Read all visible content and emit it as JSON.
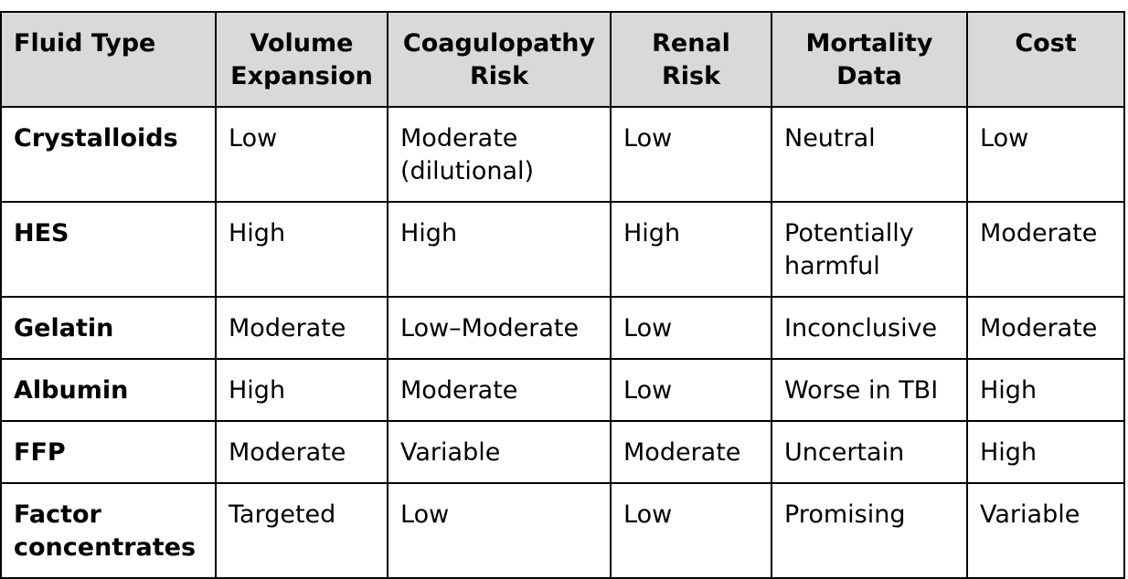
{
  "table": {
    "headers": [
      "Fluid Type",
      "Volume Expansion",
      "Coagulopathy Risk",
      "Renal Risk",
      "Mortality Data",
      "Cost"
    ],
    "rows": [
      [
        "Crystalloids",
        "Low",
        "Moderate (dilutional)",
        "Low",
        "Neutral",
        "Low"
      ],
      [
        "HES",
        "High",
        "High",
        "High",
        "Potentially harmful",
        "Moderate"
      ],
      [
        "Gelatin",
        "Moderate",
        "Low–Moderate",
        "Low",
        "Inconclusive",
        "Moderate"
      ],
      [
        "Albumin",
        "High",
        "Moderate",
        "Low",
        "Worse in TBI",
        "High"
      ],
      [
        "FFP",
        "Moderate",
        "Variable",
        "Moderate",
        "Uncertain",
        "High"
      ],
      [
        "Factor concentrates",
        "Targeted",
        "Low",
        "Low",
        "Promising",
        "Variable"
      ]
    ]
  },
  "colors": {
    "header_background": "#d9d9d9",
    "border": "#000000",
    "text": "#000000"
  }
}
